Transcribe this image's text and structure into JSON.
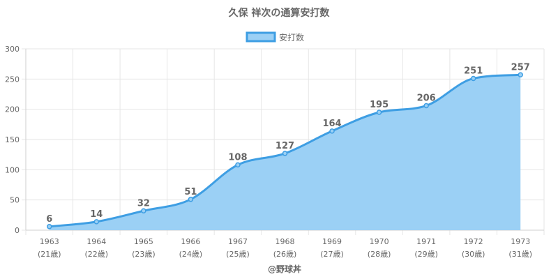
{
  "chart_data": {
    "type": "area",
    "title": "久保 祥次の通算安打数",
    "legend": {
      "label": "安打数",
      "position": "top"
    },
    "categories": [
      "1963",
      "1964",
      "1965",
      "1966",
      "1967",
      "1968",
      "1969",
      "1970",
      "1971",
      "1972",
      "1973"
    ],
    "sub_labels": [
      "(21歳)",
      "(22歳)",
      "(23歳)",
      "(24歳)",
      "(25歳)",
      "(26歳)",
      "(27歳)",
      "(28歳)",
      "(29歳)",
      "(30歳)",
      "(31歳)"
    ],
    "series": [
      {
        "name": "安打数",
        "values": [
          6,
          14,
          32,
          51,
          108,
          127,
          164,
          195,
          206,
          251,
          257
        ]
      }
    ],
    "ylim": [
      0,
      300
    ],
    "yticks": [
      0,
      50,
      100,
      150,
      200,
      250,
      300
    ],
    "grid": true,
    "colors": {
      "line": "#3e9ee3",
      "fill": "#9bd0f5",
      "text": "#666666",
      "grid": "#e6e6e6"
    }
  },
  "credit": "@野球丼"
}
